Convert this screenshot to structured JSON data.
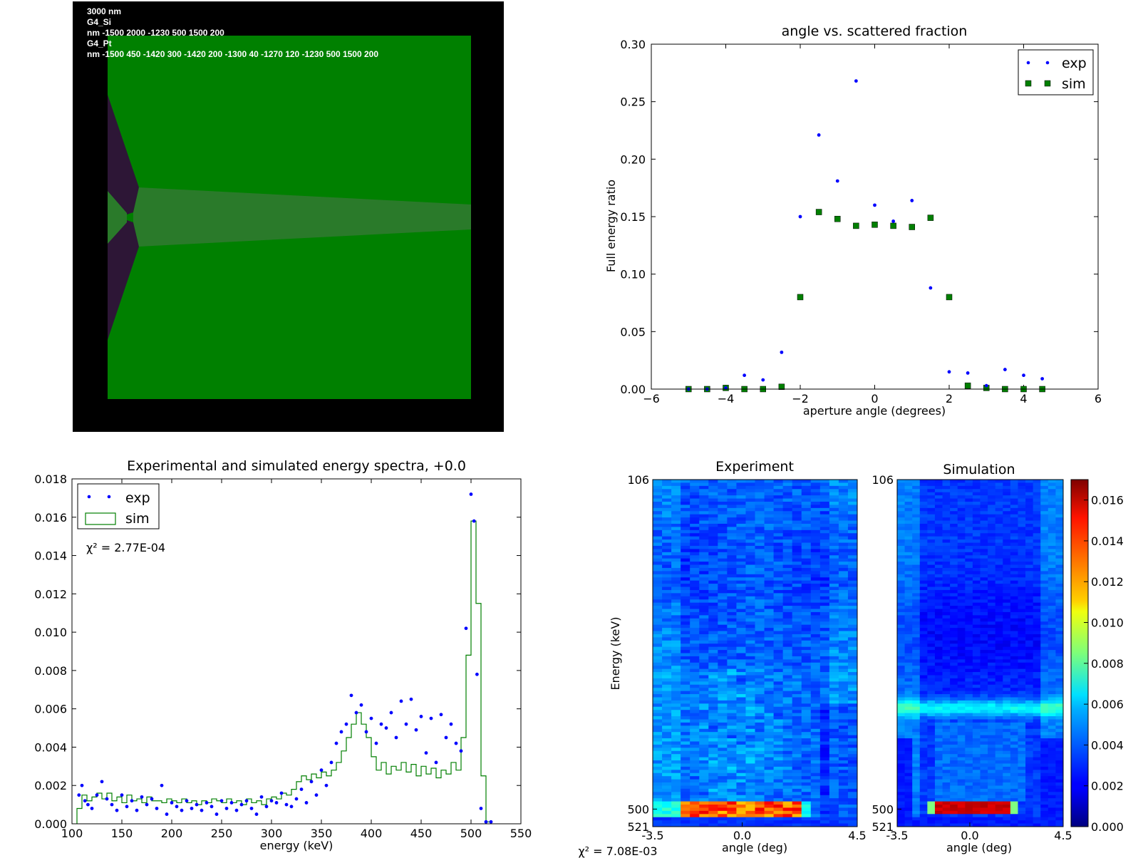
{
  "geometry_panel": {
    "lines": [
      "3000 nm",
      "G4_Si",
      "nm -1500 2000 -1230 500 1500 200",
      "G4_Pt",
      "nm -1500 450 -1420 300 -1420 200 -1300 40 -1270 120 -1230 500 1500 200"
    ],
    "colors": {
      "background": "#000000",
      "silicon": "#008000",
      "platinum": "#2d1636",
      "beam": "#2a7a2a"
    }
  },
  "chart_data": [
    {
      "id": "angle_plot",
      "type": "scatter",
      "title": "angle vs. scattered fraction",
      "xlabel": "aperture angle (degrees)",
      "ylabel": "Full energy ratio",
      "xlim": [
        -6,
        6
      ],
      "ylim": [
        0,
        0.3
      ],
      "xticks": [
        "−6",
        "−4",
        "−2",
        "0",
        "2",
        "4",
        "6"
      ],
      "yticks": [
        "0.00",
        "0.05",
        "0.10",
        "0.15",
        "0.20",
        "0.25",
        "0.30"
      ],
      "legend": {
        "position": "top-right",
        "entries": [
          "exp",
          "sim"
        ]
      },
      "series": [
        {
          "name": "exp",
          "marker": "dot",
          "color": "#0000ff",
          "points": [
            [
              -5,
              0
            ],
            [
              -4.5,
              0
            ],
            [
              -4,
              0.001
            ],
            [
              -3.5,
              0.012
            ],
            [
              -3,
              0.008
            ],
            [
              -2.5,
              0.032
            ],
            [
              -2,
              0.15
            ],
            [
              -1.5,
              0.221
            ],
            [
              -1,
              0.181
            ],
            [
              -0.5,
              0.268
            ],
            [
              0,
              0.16
            ],
            [
              0.5,
              0.146
            ],
            [
              1,
              0.164
            ],
            [
              1.5,
              0.088
            ],
            [
              2,
              0.015
            ],
            [
              2.5,
              0.014
            ],
            [
              3,
              0.003
            ],
            [
              3.5,
              0.017
            ],
            [
              4,
              0.012
            ],
            [
              4.5,
              0.009
            ]
          ]
        },
        {
          "name": "sim",
          "marker": "square",
          "color": "#007f00",
          "points": [
            [
              -5,
              0
            ],
            [
              -4.5,
              0
            ],
            [
              -4,
              0.001
            ],
            [
              -3.5,
              0
            ],
            [
              -3,
              0
            ],
            [
              -2.5,
              0.002
            ],
            [
              -2,
              0.08
            ],
            [
              -1.5,
              0.154
            ],
            [
              -1,
              0.148
            ],
            [
              -0.5,
              0.142
            ],
            [
              0,
              0.143
            ],
            [
              0.5,
              0.142
            ],
            [
              1,
              0.141
            ],
            [
              1.5,
              0.149
            ],
            [
              2,
              0.08
            ],
            [
              2.5,
              0.003
            ],
            [
              3,
              0.001
            ],
            [
              3.5,
              0
            ],
            [
              4,
              0
            ],
            [
              4.5,
              0
            ]
          ]
        }
      ]
    },
    {
      "id": "spectrum_plot",
      "type": "line",
      "title": "Experimental and simulated energy spectra, +0.0",
      "xlabel": "energy (keV)",
      "ylabel": "",
      "xlim": [
        100,
        550
      ],
      "ylim": [
        0,
        0.018
      ],
      "xticks": [
        "100",
        "150",
        "200",
        "250",
        "300",
        "350",
        "400",
        "450",
        "500",
        "550"
      ],
      "yticks": [
        "0.000",
        "0.002",
        "0.004",
        "0.006",
        "0.008",
        "0.010",
        "0.012",
        "0.014",
        "0.016",
        "0.018"
      ],
      "legend": {
        "position": "top-left",
        "entries": [
          "exp",
          "sim"
        ]
      },
      "annotation": "χ² = 2.77E-04",
      "series": [
        {
          "name": "exp",
          "marker": "dot",
          "color": "#0000ff",
          "points": [
            [
              107,
              0.0015
            ],
            [
              110,
              0.002
            ],
            [
              113,
              0.0012
            ],
            [
              116,
              0.001
            ],
            [
              120,
              0.0008
            ],
            [
              125,
              0.0015
            ],
            [
              130,
              0.0022
            ],
            [
              135,
              0.0013
            ],
            [
              140,
              0.001
            ],
            [
              145,
              0.0007
            ],
            [
              150,
              0.0015
            ],
            [
              155,
              0.0009
            ],
            [
              160,
              0.0012
            ],
            [
              165,
              0.0007
            ],
            [
              170,
              0.0014
            ],
            [
              175,
              0.001
            ],
            [
              180,
              0.0013
            ],
            [
              185,
              0.0008
            ],
            [
              190,
              0.002
            ],
            [
              195,
              0.0005
            ],
            [
              200,
              0.0011
            ],
            [
              205,
              0.0009
            ],
            [
              210,
              0.0007
            ],
            [
              215,
              0.0012
            ],
            [
              220,
              0.0008
            ],
            [
              225,
              0.001
            ],
            [
              230,
              0.0007
            ],
            [
              235,
              0.0011
            ],
            [
              240,
              0.0009
            ],
            [
              245,
              0.0005
            ],
            [
              250,
              0.0012
            ],
            [
              255,
              0.0008
            ],
            [
              260,
              0.0011
            ],
            [
              265,
              0.0007
            ],
            [
              270,
              0.001
            ],
            [
              275,
              0.0012
            ],
            [
              280,
              0.0008
            ],
            [
              285,
              0.0005
            ],
            [
              290,
              0.0014
            ],
            [
              295,
              0.0009
            ],
            [
              300,
              0.0012
            ],
            [
              305,
              0.0011
            ],
            [
              310,
              0.0016
            ],
            [
              315,
              0.001
            ],
            [
              320,
              0.0009
            ],
            [
              325,
              0.0013
            ],
            [
              330,
              0.0018
            ],
            [
              335,
              0.0011
            ],
            [
              340,
              0.0022
            ],
            [
              345,
              0.0015
            ],
            [
              350,
              0.0028
            ],
            [
              355,
              0.002
            ],
            [
              360,
              0.0032
            ],
            [
              365,
              0.0042
            ],
            [
              370,
              0.0048
            ],
            [
              375,
              0.0052
            ],
            [
              380,
              0.0067
            ],
            [
              385,
              0.0058
            ],
            [
              390,
              0.0062
            ],
            [
              395,
              0.0048
            ],
            [
              400,
              0.0055
            ],
            [
              405,
              0.0042
            ],
            [
              410,
              0.0052
            ],
            [
              415,
              0.005
            ],
            [
              420,
              0.0058
            ],
            [
              425,
              0.0045
            ],
            [
              430,
              0.0064
            ],
            [
              435,
              0.0052
            ],
            [
              440,
              0.0065
            ],
            [
              445,
              0.0049
            ],
            [
              450,
              0.0056
            ],
            [
              455,
              0.0037
            ],
            [
              460,
              0.0055
            ],
            [
              465,
              0.0032
            ],
            [
              470,
              0.0057
            ],
            [
              475,
              0.0045
            ],
            [
              480,
              0.0052
            ],
            [
              485,
              0.0042
            ],
            [
              490,
              0.0038
            ],
            [
              495,
              0.0102
            ],
            [
              500,
              0.0172
            ],
            [
              503,
              0.0158
            ],
            [
              506,
              0.0078
            ],
            [
              510,
              0.0008
            ],
            [
              515,
              0.0001
            ],
            [
              520,
              0.0001
            ]
          ]
        },
        {
          "name": "sim",
          "marker": "step",
          "color": "#007f00",
          "points": [
            [
              105,
              0.0008
            ],
            [
              110,
              0.0015
            ],
            [
              115,
              0.0012
            ],
            [
              120,
              0.0014
            ],
            [
              125,
              0.0016
            ],
            [
              130,
              0.0013
            ],
            [
              135,
              0.0016
            ],
            [
              140,
              0.0012
            ],
            [
              145,
              0.0014
            ],
            [
              150,
              0.0011
            ],
            [
              155,
              0.0015
            ],
            [
              160,
              0.0012
            ],
            [
              165,
              0.0013
            ],
            [
              170,
              0.0011
            ],
            [
              175,
              0.0014
            ],
            [
              180,
              0.0012
            ],
            [
              185,
              0.0012
            ],
            [
              190,
              0.0011
            ],
            [
              195,
              0.0013
            ],
            [
              200,
              0.0012
            ],
            [
              205,
              0.0011
            ],
            [
              210,
              0.0013
            ],
            [
              215,
              0.0011
            ],
            [
              220,
              0.0012
            ],
            [
              225,
              0.001
            ],
            [
              230,
              0.0012
            ],
            [
              235,
              0.0011
            ],
            [
              240,
              0.0013
            ],
            [
              245,
              0.0012
            ],
            [
              250,
              0.0011
            ],
            [
              255,
              0.0013
            ],
            [
              260,
              0.0011
            ],
            [
              265,
              0.0012
            ],
            [
              270,
              0.001
            ],
            [
              275,
              0.0013
            ],
            [
              280,
              0.0011
            ],
            [
              285,
              0.0012
            ],
            [
              290,
              0.001
            ],
            [
              295,
              0.0013
            ],
            [
              300,
              0.0014
            ],
            [
              305,
              0.0013
            ],
            [
              310,
              0.0016
            ],
            [
              315,
              0.0015
            ],
            [
              320,
              0.0018
            ],
            [
              325,
              0.0022
            ],
            [
              330,
              0.0025
            ],
            [
              335,
              0.0023
            ],
            [
              340,
              0.0026
            ],
            [
              345,
              0.0024
            ],
            [
              350,
              0.0027
            ],
            [
              355,
              0.0025
            ],
            [
              360,
              0.0028
            ],
            [
              365,
              0.0032
            ],
            [
              370,
              0.0038
            ],
            [
              375,
              0.0045
            ],
            [
              380,
              0.0052
            ],
            [
              385,
              0.0058
            ],
            [
              390,
              0.0052
            ],
            [
              395,
              0.0045
            ],
            [
              400,
              0.0035
            ],
            [
              405,
              0.0028
            ],
            [
              410,
              0.0032
            ],
            [
              415,
              0.0026
            ],
            [
              420,
              0.003
            ],
            [
              425,
              0.0028
            ],
            [
              430,
              0.0032
            ],
            [
              435,
              0.0027
            ],
            [
              440,
              0.0031
            ],
            [
              445,
              0.0025
            ],
            [
              450,
              0.003
            ],
            [
              455,
              0.0026
            ],
            [
              460,
              0.0029
            ],
            [
              465,
              0.0024
            ],
            [
              470,
              0.0028
            ],
            [
              475,
              0.0026
            ],
            [
              480,
              0.0032
            ],
            [
              485,
              0.0028
            ],
            [
              490,
              0.0045
            ],
            [
              495,
              0.0088
            ],
            [
              500,
              0.0158
            ],
            [
              505,
              0.0115
            ],
            [
              510,
              0.0025
            ],
            [
              515,
              0.0001
            ]
          ]
        }
      ]
    },
    {
      "id": "experiment_heatmap",
      "type": "heatmap",
      "title": "Experiment",
      "xlabel": "angle (deg)",
      "ylabel": "Energy (keV)",
      "xticks": [
        "-3.5",
        "0.0",
        "4.5"
      ],
      "yticks": [
        "106",
        "500",
        "521"
      ],
      "xlim": [
        -3.5,
        4.5
      ],
      "ylim": [
        106,
        521
      ]
    },
    {
      "id": "simulation_heatmap",
      "type": "heatmap",
      "title": "Simulation",
      "xlabel": "angle (deg)",
      "ylabel": "",
      "xticks": [
        "-3.5",
        "0.0",
        "4.5"
      ],
      "yticks": [
        "106",
        "500",
        "521"
      ],
      "xlim": [
        -3.5,
        4.5
      ],
      "ylim": [
        106,
        521
      ]
    },
    {
      "id": "colorbar",
      "type": "colorbar",
      "range": [
        0,
        0.017
      ],
      "ticks": [
        "0.000",
        "0.002",
        "0.004",
        "0.006",
        "0.008",
        "0.010",
        "0.012",
        "0.014",
        "0.016"
      ]
    }
  ],
  "footer_annotation": "χ² = 7.08E-03"
}
